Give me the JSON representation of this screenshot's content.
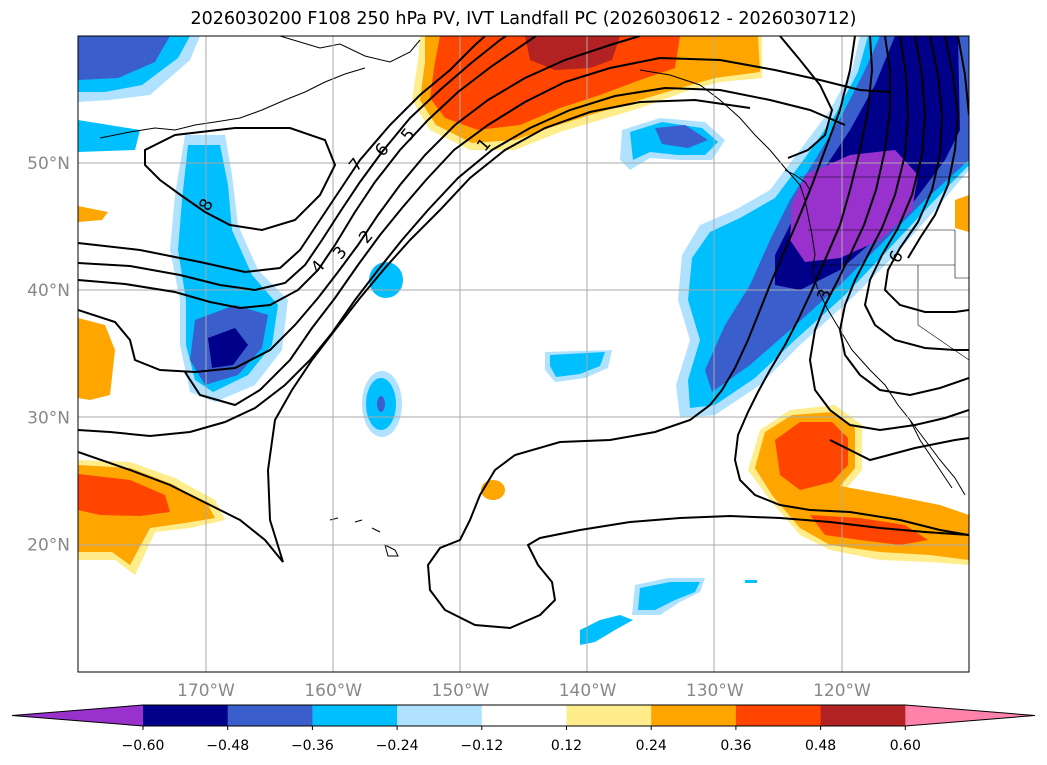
{
  "title": "2026030200 F108 250 hPa PV, IVT Landfall PC (2026030612 - 2026030712)",
  "map": {
    "lat_ticks": [
      {
        "value": 50,
        "label": "50°N"
      },
      {
        "value": 40,
        "label": "40°N"
      },
      {
        "value": 30,
        "label": "30°N"
      },
      {
        "value": 20,
        "label": "20°N"
      }
    ],
    "lon_ticks": [
      {
        "value": -170,
        "label": "170°W"
      },
      {
        "value": -160,
        "label": "160°W"
      },
      {
        "value": -150,
        "label": "150°W"
      },
      {
        "value": -140,
        "label": "140°W"
      },
      {
        "value": -130,
        "label": "130°W"
      },
      {
        "value": -120,
        "label": "120°W"
      }
    ],
    "contour_labels": [
      "7",
      "6",
      "5",
      "1",
      "4",
      "3",
      "2",
      "8",
      "3",
      "6"
    ]
  },
  "colorbar": {
    "ticks": [
      "−0.60",
      "−0.48",
      "−0.36",
      "−0.24",
      "−0.12",
      "0.12",
      "0.24",
      "0.36",
      "0.48",
      "0.60"
    ],
    "colors": [
      "#9932cc",
      "#00008b",
      "#3a5fcd",
      "#00bfff",
      "#b0e2ff",
      "#ffffff",
      "#ffec8b",
      "#ffa500",
      "#ff4500",
      "#b22222",
      "#ff82ab"
    ]
  }
}
